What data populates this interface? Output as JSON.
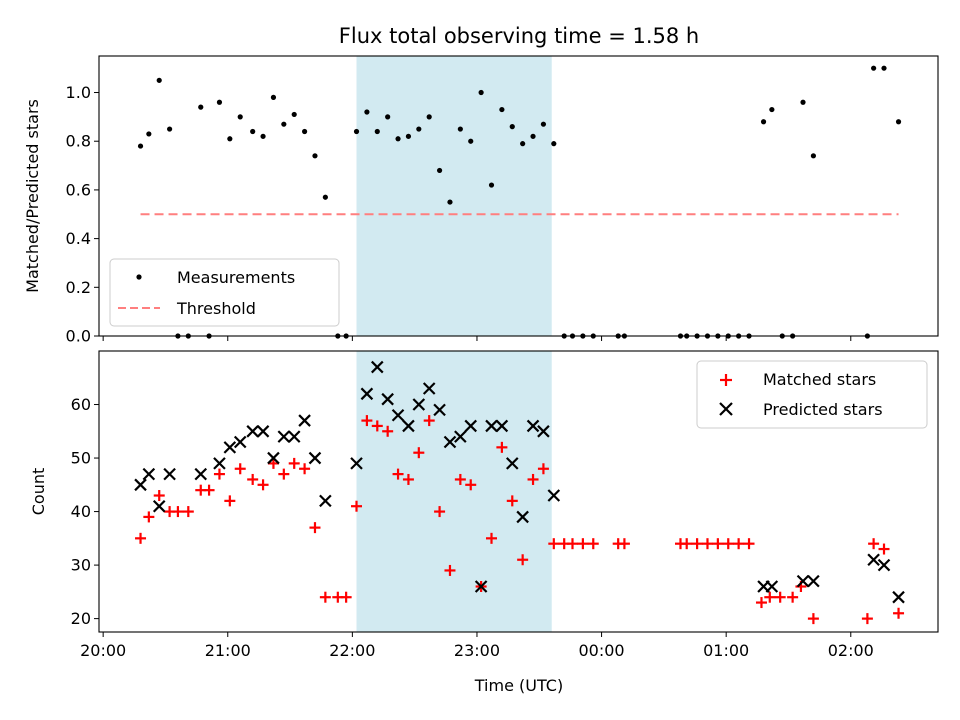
{
  "chart_data": [
    {
      "type": "scatter",
      "title": "Flux total observing time = 1.58 h",
      "xlabel": "",
      "ylabel": "Matched/Predicted stars",
      "ylim": [
        0,
        1.15
      ],
      "yticks": [
        "0.0",
        "0.2",
        "0.4",
        "0.6",
        "0.8",
        "1.0"
      ],
      "xlim": [
        "19:58",
        "02:42"
      ],
      "shaded_region": {
        "x_start": "22:02",
        "x_end": "23:36",
        "color": "#add8e6"
      },
      "threshold": {
        "label": "Threshold",
        "value": 0.5,
        "x_start": "20:18",
        "x_end": "02:23",
        "color": "#ff7f7f"
      },
      "legend": {
        "placement": "lower-left",
        "entries": [
          "Measurements",
          "Threshold"
        ]
      },
      "series": [
        {
          "name": "Measurements",
          "marker": "dot",
          "color": "#000000",
          "points": [
            [
              "20:18",
              0.78
            ],
            [
              "20:22",
              0.83
            ],
            [
              "20:27",
              1.05
            ],
            [
              "20:32",
              0.85
            ],
            [
              "20:36",
              0
            ],
            [
              "20:41",
              0
            ],
            [
              "20:47",
              0.94
            ],
            [
              "20:51",
              0
            ],
            [
              "20:56",
              0.96
            ],
            [
              "21:01",
              0.81
            ],
            [
              "21:06",
              0.9
            ],
            [
              "21:12",
              0.84
            ],
            [
              "21:17",
              0.82
            ],
            [
              "21:22",
              0.98
            ],
            [
              "21:27",
              0.87
            ],
            [
              "21:32",
              0.91
            ],
            [
              "21:37",
              0.84
            ],
            [
              "21:42",
              0.74
            ],
            [
              "21:47",
              0.57
            ],
            [
              "21:53",
              0
            ],
            [
              "21:57",
              0
            ],
            [
              "22:02",
              0.84
            ],
            [
              "22:07",
              0.92
            ],
            [
              "22:12",
              0.84
            ],
            [
              "22:17",
              0.9
            ],
            [
              "22:22",
              0.81
            ],
            [
              "22:27",
              0.82
            ],
            [
              "22:32",
              0.85
            ],
            [
              "22:37",
              0.9
            ],
            [
              "22:42",
              0.68
            ],
            [
              "22:47",
              0.55
            ],
            [
              "22:52",
              0.85
            ],
            [
              "22:57",
              0.8
            ],
            [
              "23:02",
              1.0
            ],
            [
              "23:07",
              0.62
            ],
            [
              "23:12",
              0.93
            ],
            [
              "23:17",
              0.86
            ],
            [
              "23:22",
              0.79
            ],
            [
              "23:27",
              0.82
            ],
            [
              "23:32",
              0.87
            ],
            [
              "23:37",
              0.79
            ],
            [
              "23:42",
              0
            ],
            [
              "23:46",
              0
            ],
            [
              "23:51",
              0
            ],
            [
              "23:56",
              0
            ],
            [
              "00:08",
              0
            ],
            [
              "00:11",
              0
            ],
            [
              "00:38",
              0
            ],
            [
              "00:41",
              0
            ],
            [
              "00:46",
              0
            ],
            [
              "00:51",
              0
            ],
            [
              "00:56",
              0
            ],
            [
              "01:01",
              0
            ],
            [
              "01:06",
              0
            ],
            [
              "01:11",
              0
            ],
            [
              "01:18",
              0.88
            ],
            [
              "01:22",
              0.93
            ],
            [
              "01:27",
              0
            ],
            [
              "01:32",
              0
            ],
            [
              "01:37",
              0.96
            ],
            [
              "01:42",
              0.74
            ],
            [
              "02:08",
              0
            ],
            [
              "02:11",
              1.1
            ],
            [
              "02:16",
              1.1
            ],
            [
              "02:23",
              0.88
            ]
          ]
        }
      ]
    },
    {
      "type": "scatter",
      "title": "",
      "xlabel": "Time (UTC)",
      "ylabel": "Count",
      "ylim": [
        17.5,
        70
      ],
      "yticks": [
        "20",
        "30",
        "40",
        "50",
        "60"
      ],
      "xticks": [
        "20:00",
        "21:00",
        "22:00",
        "23:00",
        "00:00",
        "01:00",
        "02:00"
      ],
      "xlim": [
        "19:58",
        "02:42"
      ],
      "shaded_region": {
        "x_start": "22:02",
        "x_end": "23:36",
        "color": "#add8e6"
      },
      "legend": {
        "placement": "top-right",
        "entries": [
          "Matched stars",
          "Predicted stars"
        ]
      },
      "series": [
        {
          "name": "Matched stars",
          "marker": "plus",
          "color": "#ff0000",
          "points": [
            [
              "20:18",
              35
            ],
            [
              "20:22",
              39
            ],
            [
              "20:27",
              43
            ],
            [
              "20:32",
              40
            ],
            [
              "20:36",
              40
            ],
            [
              "20:41",
              40
            ],
            [
              "20:47",
              44
            ],
            [
              "20:51",
              44
            ],
            [
              "20:56",
              47
            ],
            [
              "21:01",
              42
            ],
            [
              "21:06",
              48
            ],
            [
              "21:12",
              46
            ],
            [
              "21:17",
              45
            ],
            [
              "21:22",
              49
            ],
            [
              "21:27",
              47
            ],
            [
              "21:32",
              49
            ],
            [
              "21:37",
              48
            ],
            [
              "21:42",
              37
            ],
            [
              "21:47",
              24
            ],
            [
              "21:53",
              24
            ],
            [
              "21:57",
              24
            ],
            [
              "22:02",
              41
            ],
            [
              "22:07",
              57
            ],
            [
              "22:12",
              56
            ],
            [
              "22:17",
              55
            ],
            [
              "22:22",
              47
            ],
            [
              "22:27",
              46
            ],
            [
              "22:32",
              51
            ],
            [
              "22:37",
              57
            ],
            [
              "22:42",
              40
            ],
            [
              "22:47",
              29
            ],
            [
              "22:52",
              46
            ],
            [
              "22:57",
              45
            ],
            [
              "23:02",
              26
            ],
            [
              "23:07",
              35
            ],
            [
              "23:12",
              52
            ],
            [
              "23:17",
              42
            ],
            [
              "23:22",
              31
            ],
            [
              "23:27",
              46
            ],
            [
              "23:32",
              48
            ],
            [
              "23:37",
              34
            ],
            [
              "23:42",
              34
            ],
            [
              "23:46",
              34
            ],
            [
              "23:51",
              34
            ],
            [
              "23:56",
              34
            ],
            [
              "00:08",
              34
            ],
            [
              "00:11",
              34
            ],
            [
              "00:38",
              34
            ],
            [
              "00:41",
              34
            ],
            [
              "00:46",
              34
            ],
            [
              "00:51",
              34
            ],
            [
              "00:56",
              34
            ],
            [
              "01:01",
              34
            ],
            [
              "01:06",
              34
            ],
            [
              "01:11",
              34
            ],
            [
              "01:17",
              23
            ],
            [
              "01:21",
              24
            ],
            [
              "01:26",
              24
            ],
            [
              "01:32",
              24
            ],
            [
              "01:36",
              26
            ],
            [
              "01:42",
              20
            ],
            [
              "02:08",
              20
            ],
            [
              "02:11",
              34
            ],
            [
              "02:16",
              33
            ],
            [
              "02:23",
              21
            ]
          ]
        },
        {
          "name": "Predicted stars",
          "marker": "x",
          "color": "#000000",
          "points": [
            [
              "20:18",
              45
            ],
            [
              "20:22",
              47
            ],
            [
              "20:27",
              41
            ],
            [
              "20:32",
              47
            ],
            [
              "20:47",
              47
            ],
            [
              "20:56",
              49
            ],
            [
              "21:01",
              52
            ],
            [
              "21:06",
              53
            ],
            [
              "21:12",
              55
            ],
            [
              "21:17",
              55
            ],
            [
              "21:22",
              50
            ],
            [
              "21:27",
              54
            ],
            [
              "21:32",
              54
            ],
            [
              "21:37",
              57
            ],
            [
              "21:42",
              50
            ],
            [
              "21:47",
              42
            ],
            [
              "22:02",
              49
            ],
            [
              "22:07",
              62
            ],
            [
              "22:12",
              67
            ],
            [
              "22:17",
              61
            ],
            [
              "22:22",
              58
            ],
            [
              "22:27",
              56
            ],
            [
              "22:32",
              60
            ],
            [
              "22:37",
              63
            ],
            [
              "22:42",
              59
            ],
            [
              "22:47",
              53
            ],
            [
              "22:52",
              54
            ],
            [
              "22:57",
              56
            ],
            [
              "23:02",
              26
            ],
            [
              "23:07",
              56
            ],
            [
              "23:12",
              56
            ],
            [
              "23:17",
              49
            ],
            [
              "23:22",
              39
            ],
            [
              "23:27",
              56
            ],
            [
              "23:32",
              55
            ],
            [
              "23:37",
              43
            ],
            [
              "01:18",
              26
            ],
            [
              "01:22",
              26
            ],
            [
              "01:37",
              27
            ],
            [
              "01:42",
              27
            ],
            [
              "02:11",
              31
            ],
            [
              "02:16",
              30
            ],
            [
              "02:23",
              24
            ]
          ]
        }
      ]
    }
  ]
}
